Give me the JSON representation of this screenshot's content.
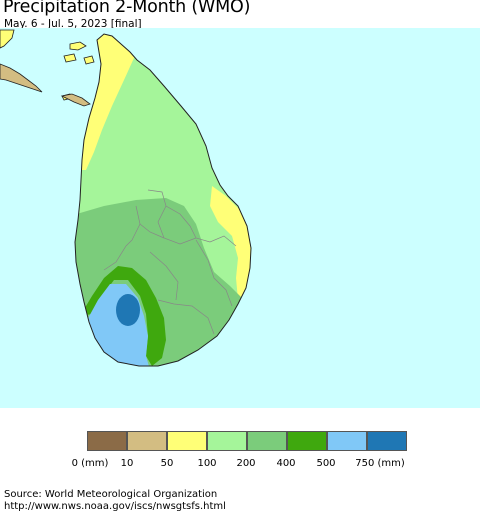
{
  "header": {
    "title": "Precipitation 2-Month (WMO)",
    "subtitle": "May. 6 - Jul. 5, 2023 [final]"
  },
  "map": {
    "region": "Sri Lanka",
    "ocean_color": "#ccffff",
    "coast_color": "#222222",
    "boundary_color": "#888888"
  },
  "legend": {
    "colors": [
      "#8b6b47",
      "#d3bd82",
      "#ffff77",
      "#a5f59a",
      "#7bcc7b",
      "#3fa80e",
      "#80c8f7",
      "#1f77b4"
    ],
    "labels": [
      "0 (mm)",
      "10",
      "50",
      "100",
      "200",
      "400",
      "500",
      "750 (mm)"
    ]
  },
  "source": {
    "line1": "Source: World Meteorological Organization",
    "line2": "http://www.nws.noaa.gov/iscs/nwsgtsfs.html"
  }
}
